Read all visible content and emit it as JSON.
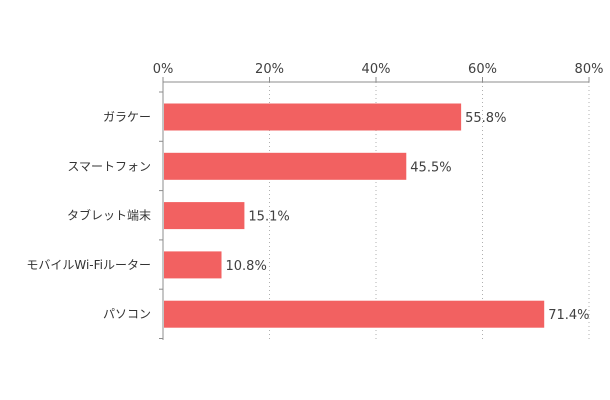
{
  "chart_data": {
    "type": "bar",
    "orientation": "horizontal",
    "categories": [
      "ガラケー",
      "スマートフォン",
      "タブレット端末",
      "モバイルWi-Fiルーター",
      "パソコン"
    ],
    "values": [
      55.8,
      45.5,
      15.1,
      10.8,
      71.4
    ],
    "value_labels": [
      "55.8%",
      "45.5%",
      "15.1%",
      "10.8%",
      "71.4%"
    ],
    "xlim": [
      0,
      80
    ],
    "ticks": [
      0,
      20,
      40,
      60,
      80
    ],
    "tick_labels": [
      "0%",
      "20%",
      "40%",
      "60%",
      "80%"
    ],
    "axis_position": "top",
    "grid": "dotted vertical",
    "bar_color": "#f26161",
    "title": "",
    "xlabel": "",
    "ylabel": ""
  }
}
